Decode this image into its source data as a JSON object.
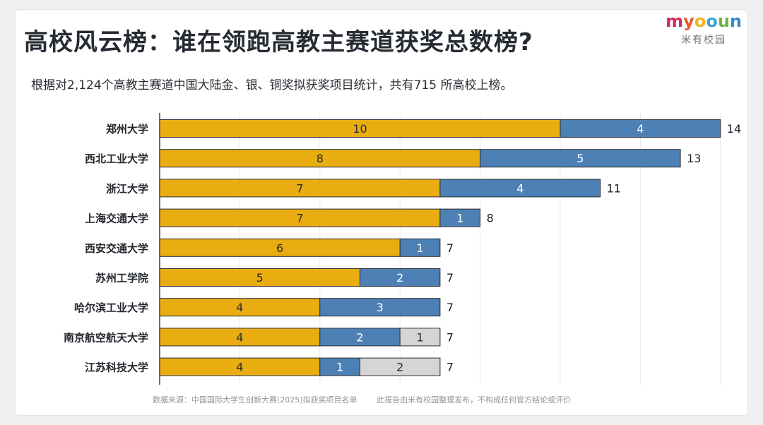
{
  "header": {
    "title": "高校风云榜：谁在领跑高教主赛道获奖总数榜?",
    "subtitle": "根据对2,124个高教主赛道中国大陆金、银、铜奖拟获奖项目统计，共有715 所高校上榜。"
  },
  "logo": {
    "mark": "myooun",
    "cn": "米有校园"
  },
  "footer": {
    "source": "数据来源：中国国际大学生创新大赛(2025)拟获奖项目名单",
    "disclaimer": "此报告由米有校园整理发布，不构成任何官方结论或评价"
  },
  "colors": {
    "gold": "#e9ad12",
    "silver": "#4d80b4",
    "bronze": "#d5d5d5"
  },
  "chart_data": {
    "type": "bar",
    "orientation": "horizontal",
    "stacked": true,
    "categories": [
      "郑州大学",
      "西北工业大学",
      "浙江大学",
      "上海交通大学",
      "西安交通大学",
      "苏州工学院",
      "哈尔滨工业大学",
      "南京航空航天大学",
      "江苏科技大学"
    ],
    "series": [
      {
        "values": [
          10,
          8,
          7,
          7,
          6,
          5,
          4,
          4,
          4
        ],
        "color": "#e9ad12"
      },
      {
        "values": [
          4,
          5,
          4,
          1,
          1,
          2,
          3,
          2,
          1
        ],
        "color": "#4d80b4"
      },
      {
        "values": [
          0,
          0,
          0,
          0,
          0,
          0,
          0,
          1,
          2
        ],
        "color": "#d5d5d5"
      }
    ],
    "totals": [
      14,
      13,
      11,
      8,
      7,
      7,
      7,
      7,
      7
    ],
    "xlim": [
      0,
      14
    ],
    "grid": true,
    "legend": "none"
  }
}
